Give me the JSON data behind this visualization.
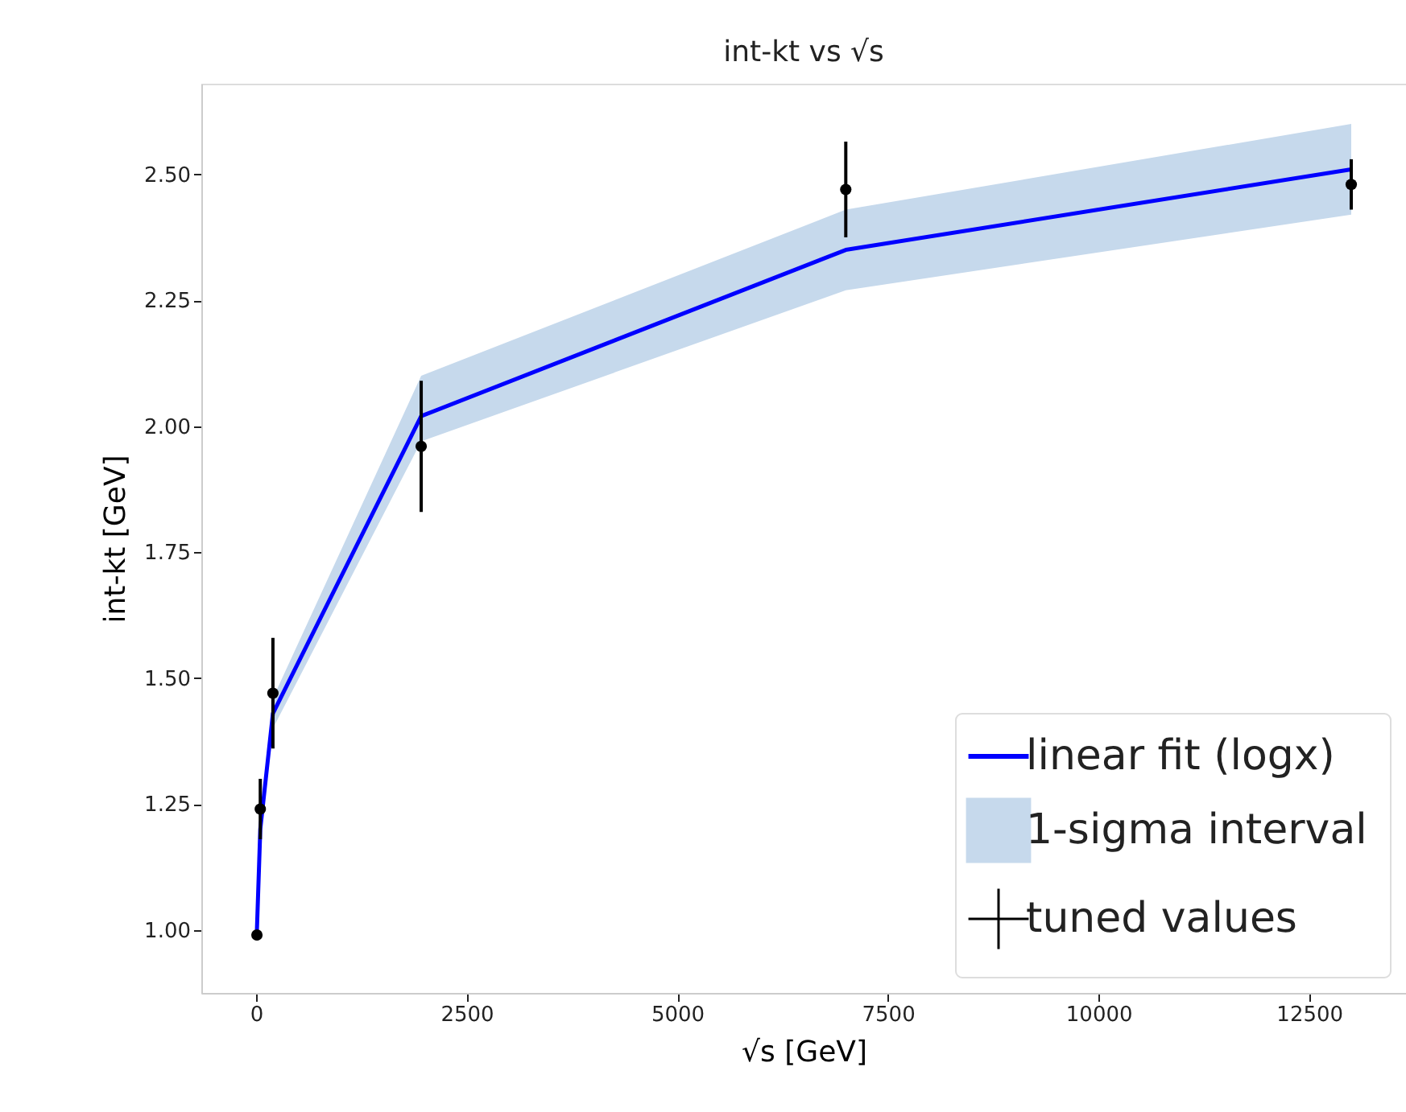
{
  "chart_data": {
    "type": "line",
    "title": "int-kt vs √s",
    "xlabel": "√s [GeV]",
    "ylabel": "int-kt [GeV]",
    "xlim": [
      -650,
      13650
    ],
    "ylim": [
      0.875,
      2.68
    ],
    "xticks": [
      0,
      2500,
      5000,
      7500,
      10000,
      12500
    ],
    "yticks": [
      {
        "value": 1,
        "label": "1.00"
      },
      {
        "value": 1.25,
        "label": "1.25"
      },
      {
        "value": 1.5,
        "label": "1.50"
      },
      {
        "value": 1.75,
        "label": "1.75"
      },
      {
        "value": 2,
        "label": "2.00"
      },
      {
        "value": 2.25,
        "label": "2.25"
      },
      {
        "value": 2.5,
        "label": "2.50"
      }
    ],
    "legend": "bottom right",
    "series": [
      {
        "name": "linear fit (logx)",
        "type": "line",
        "color": "#0000ff",
        "x": [
          10,
          50,
          200,
          1960,
          7000,
          13000
        ],
        "values": [
          1.0,
          1.2,
          1.43,
          2.02,
          2.35,
          2.51
        ],
        "lower": [
          0.99,
          1.18,
          1.4,
          1.97,
          2.27,
          2.42
        ],
        "upper": [
          1.01,
          1.22,
          1.46,
          2.1,
          2.43,
          2.6
        ]
      },
      {
        "name": "1-sigma interval",
        "type": "area",
        "color": "#c6d9ec"
      },
      {
        "name": "tuned values",
        "type": "scatter",
        "color": "#000000",
        "marker": "circle",
        "x": [
          10,
          50,
          200,
          1960,
          7000,
          13000
        ],
        "values": [
          0.99,
          1.24,
          1.47,
          1.96,
          2.47,
          2.48
        ],
        "errors": [
          0.01,
          0.06,
          0.11,
          0.13,
          0.095,
          0.05
        ]
      }
    ]
  }
}
